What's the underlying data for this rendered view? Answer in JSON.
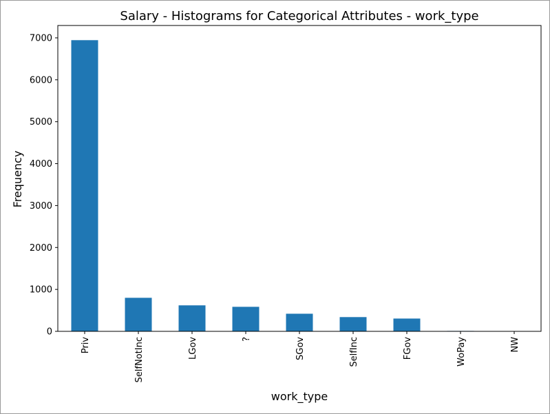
{
  "chart_data": {
    "type": "bar",
    "title": "Salary - Histograms for Categorical Attributes - work_type",
    "xlabel": "work_type",
    "ylabel": "Frequency",
    "categories": [
      "Priv",
      "SelfNotInc",
      "LGov",
      "?",
      "SGov",
      "SelfInc",
      "FGov",
      "WoPay",
      "NW"
    ],
    "values": [
      6945,
      800,
      620,
      585,
      420,
      340,
      305,
      10,
      5
    ],
    "yticks": [
      "0",
      "1000",
      "2000",
      "3000",
      "4000",
      "5000",
      "6000",
      "7000"
    ],
    "ylim": [
      0,
      7295
    ],
    "bar_color": "#1f77b4",
    "grid": false,
    "legend": "none"
  }
}
